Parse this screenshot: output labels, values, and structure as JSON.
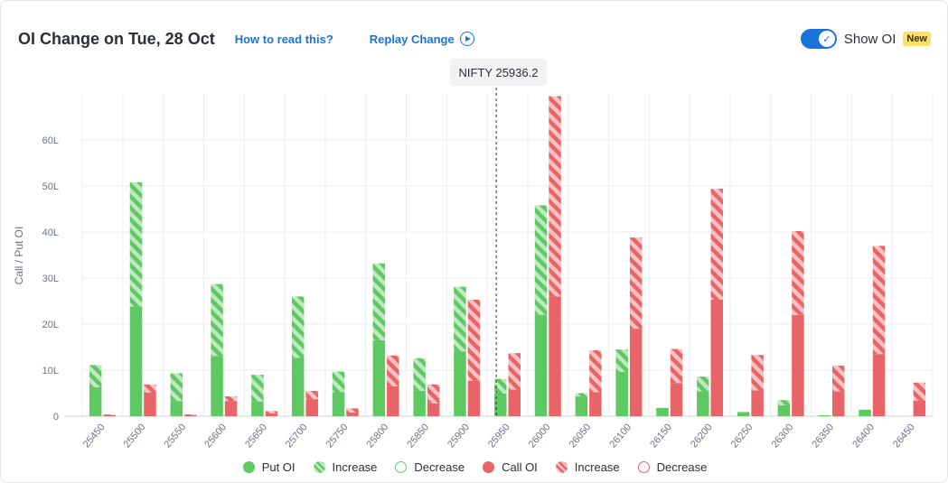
{
  "header": {
    "title": "OI Change on Tue, 28 Oct",
    "how_link": "How to read this?",
    "replay_link": "Replay Change",
    "toggle_label": "Show OI",
    "toggle_on": true,
    "new_badge": "New"
  },
  "tooltip": {
    "text": "NIFTY 25936.2"
  },
  "legend": {
    "put_oi": "Put OI",
    "put_increase": "Increase",
    "put_decrease": "Decrease",
    "call_oi": "Call OI",
    "call_increase": "Increase",
    "call_decrease": "Decrease"
  },
  "colors": {
    "put": "#5ec962",
    "put_light": "#bfe8c0",
    "call": "#e96467",
    "call_light": "#f6c3c4",
    "grid": "#e9ecef",
    "axis_text": "#6b7280",
    "accent": "#1a73d9"
  },
  "chart_data": {
    "type": "bar",
    "ylabel": "Call / Put OI",
    "ylim": [
      0,
      70
    ],
    "yticks": [
      0,
      10,
      20,
      30,
      40,
      50,
      60
    ],
    "ytick_labels": [
      "0",
      "10L",
      "20L",
      "30L",
      "40L",
      "50L",
      "60L"
    ],
    "unit": "L",
    "spot_price": 25936.2,
    "categories": [
      "25450",
      "25500",
      "25550",
      "25600",
      "25650",
      "25700",
      "25750",
      "25800",
      "25850",
      "25900",
      "25950",
      "26000",
      "26050",
      "26100",
      "26150",
      "26200",
      "26250",
      "26300",
      "26350",
      "26400",
      "26450"
    ],
    "series": [
      {
        "name": "Put OI",
        "base": [
          6.3,
          23.8,
          3.3,
          13.1,
          3.2,
          12.7,
          5.2,
          16.5,
          5.5,
          14.1,
          4.9,
          22.0,
          4.3,
          9.6,
          1.8,
          5.4,
          0.9,
          2.4,
          0.2,
          1.4,
          0.0
        ],
        "increase": [
          4.8,
          27.0,
          6.0,
          15.6,
          5.8,
          13.3,
          4.5,
          16.7,
          7.1,
          14.0,
          3.2,
          23.8,
          0.7,
          4.9,
          0.0,
          3.2,
          0.0,
          1.1,
          0.0,
          0.0,
          0.0
        ]
      },
      {
        "name": "Call OI",
        "base": [
          0.2,
          5.1,
          0.2,
          3.3,
          0.6,
          3.7,
          0.8,
          6.5,
          2.8,
          7.7,
          5.8,
          26.0,
          5.2,
          19.0,
          7.2,
          25.3,
          5.6,
          22.0,
          5.4,
          13.5,
          3.4
        ],
        "increase": [
          0.2,
          1.8,
          0.2,
          1.0,
          0.5,
          1.8,
          0.9,
          6.7,
          4.1,
          17.6,
          7.9,
          43.5,
          9.1,
          19.8,
          7.4,
          24.1,
          7.7,
          18.2,
          5.6,
          23.5,
          3.9
        ]
      }
    ]
  }
}
